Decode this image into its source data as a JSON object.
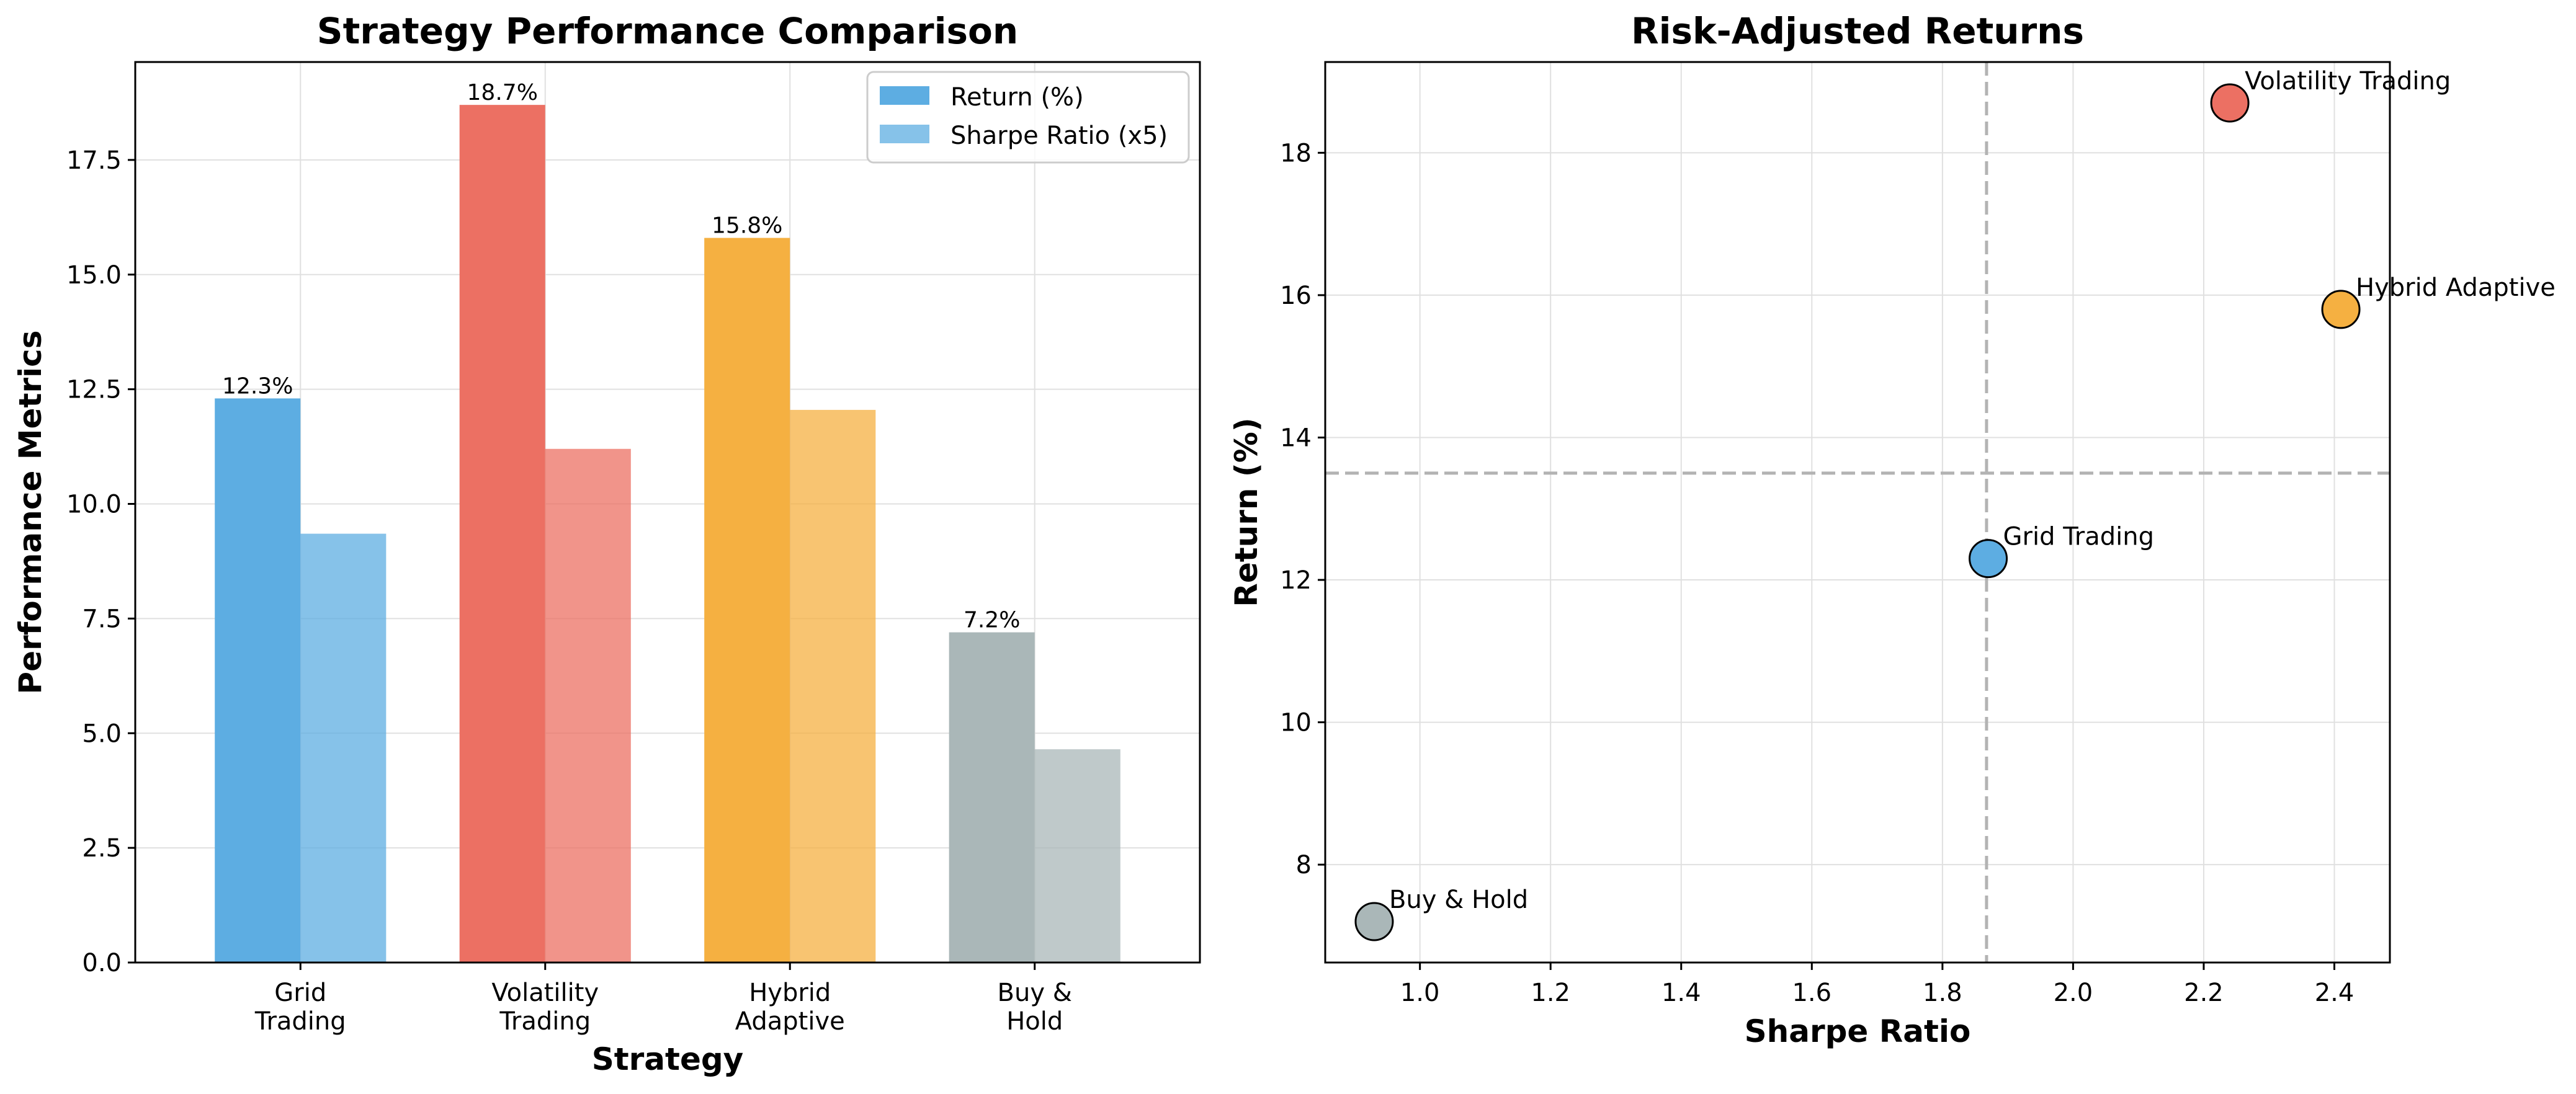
{
  "chart_data": [
    {
      "type": "bar",
      "title": "Strategy Performance Comparison",
      "xlabel": "Strategy",
      "ylabel": "Performance Metrics",
      "ylim": [
        0,
        19.635
      ],
      "yticks": [
        "0.0",
        "2.5",
        "5.0",
        "7.5",
        "10.0",
        "12.5",
        "15.0",
        "17.5"
      ],
      "ytick_values": [
        0,
        2.5,
        5,
        7.5,
        10,
        12.5,
        15,
        17.5
      ],
      "grid": true,
      "legend_position": "top-right",
      "categories": [
        [
          "Grid",
          "Trading"
        ],
        [
          "Volatility",
          "Trading"
        ],
        [
          "Hybrid",
          "Adaptive"
        ],
        [
          "Buy &",
          "Hold"
        ]
      ],
      "category_colors": [
        "#5DADE2",
        "#EC7063",
        "#F5B041",
        "#AAB7B8"
      ],
      "series": [
        {
          "name": "Return (%)",
          "values": [
            12.3,
            18.7,
            15.8,
            7.2
          ],
          "data_labels": [
            "12.3%",
            "18.7%",
            "15.8%",
            "7.2%"
          ],
          "opacity": 1.0
        },
        {
          "name": "Sharpe Ratio (x5)",
          "values": [
            9.35,
            11.2,
            12.05,
            4.65
          ],
          "opacity": 0.75
        }
      ]
    },
    {
      "type": "scatter",
      "title": "Risk-Adjusted Returns",
      "xlabel": "Sharpe Ratio",
      "ylabel": "Return (%)",
      "xlim": [
        0.855,
        2.485
      ],
      "ylim": [
        6.625,
        19.275
      ],
      "xticks": [
        "1.0",
        "1.2",
        "1.4",
        "1.6",
        "1.8",
        "2.0",
        "2.2",
        "2.4"
      ],
      "xtick_values": [
        1.0,
        1.2,
        1.4,
        1.6,
        1.8,
        2.0,
        2.2,
        2.4
      ],
      "yticks": [
        "8",
        "10",
        "12",
        "14",
        "16",
        "18"
      ],
      "ytick_values": [
        8,
        10,
        12,
        14,
        16,
        18
      ],
      "grid": true,
      "reference_lines": {
        "x": 1.8675,
        "y": 13.5
      },
      "points": [
        {
          "label": "Grid Trading",
          "x": 1.87,
          "y": 12.3,
          "color": "#5DADE2"
        },
        {
          "label": "Volatility Trading",
          "x": 2.24,
          "y": 18.7,
          "color": "#EC7063"
        },
        {
          "label": "Hybrid Adaptive",
          "x": 2.41,
          "y": 15.8,
          "color": "#F5B041"
        },
        {
          "label": "Buy & Hold",
          "x": 0.93,
          "y": 7.2,
          "color": "#AAB7B8"
        }
      ]
    }
  ]
}
